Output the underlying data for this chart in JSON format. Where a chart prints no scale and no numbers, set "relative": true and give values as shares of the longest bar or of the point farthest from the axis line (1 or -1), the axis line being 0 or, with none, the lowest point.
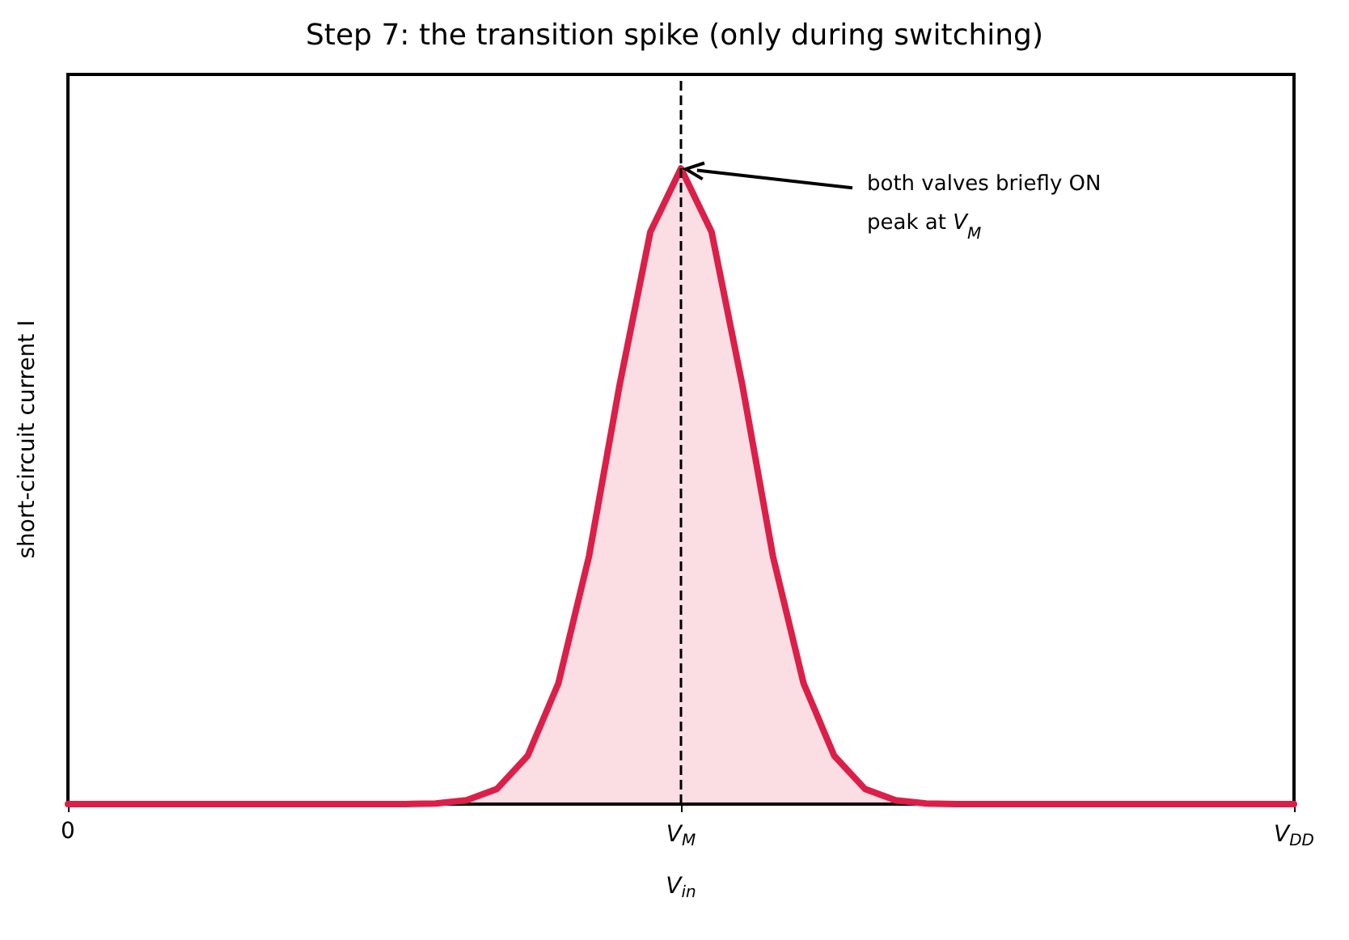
{
  "chart_data": {
    "type": "area",
    "title": "Step 7: the transition spike (only during switching)",
    "xlabel": "V$_{in}$",
    "ylabel": "short-circuit current I",
    "relative": true,
    "categories": [
      "0",
      null,
      null,
      null,
      null,
      null,
      null,
      null,
      null,
      null,
      null,
      null,
      null,
      null,
      null,
      null,
      null,
      null,
      null,
      null,
      "V$_{M}$",
      null,
      null,
      null,
      null,
      null,
      null,
      null,
      null,
      null,
      null,
      null,
      null,
      null,
      null,
      null,
      null,
      null,
      null,
      null,
      "V$_{DD}$"
    ],
    "series": [
      {
        "color": "#dc1f48",
        "values": [
          0,
          0,
          0,
          0,
          0,
          0,
          0,
          0,
          0,
          0,
          0,
          0,
          0.001,
          0.006,
          0.024,
          0.076,
          0.19,
          0.39,
          0.66,
          0.9,
          1,
          0.9,
          0.66,
          0.39,
          0.19,
          0.076,
          0.024,
          0.006,
          0.001,
          0,
          0,
          0,
          0,
          0,
          0,
          0,
          0,
          0,
          0,
          0,
          0
        ]
      }
    ],
    "ref_lines": [
      {
        "axis": "x",
        "value": "V$_{M}$",
        "color": "#000000",
        "line_style": "dashed"
      }
    ],
    "annotations": [
      "both valves briefly ON\npeak at V$_{M}$"
    ],
    "grid": false,
    "line_style": "solid",
    "marker": "none"
  }
}
